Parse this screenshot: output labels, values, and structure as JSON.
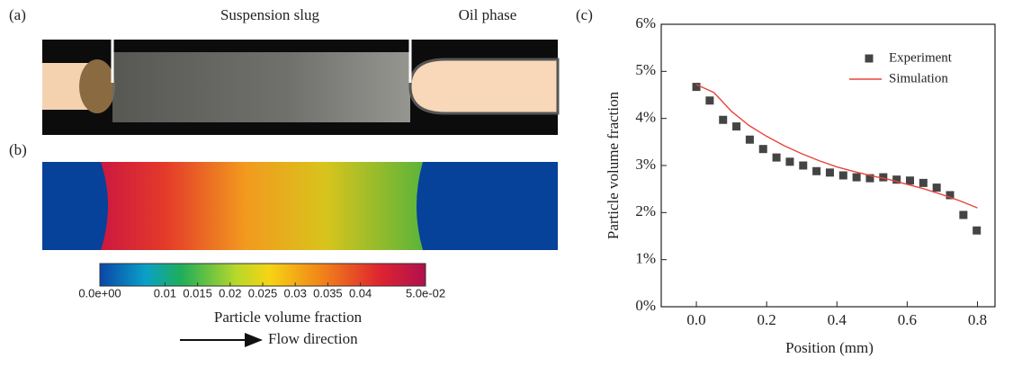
{
  "panels": {
    "a": {
      "label": "(a)",
      "annotations": [
        "Suspension slug",
        "Oil phase"
      ]
    },
    "b": {
      "label": "(b)",
      "colorbar": {
        "lim": [
          0,
          0.05
        ],
        "ticks": [
          {
            "value": 0,
            "label": "0.0e+00"
          },
          0.01,
          0.015,
          0.02,
          0.025,
          0.03,
          0.035,
          0.04,
          {
            "value": 0.05,
            "label": "5.0e-02"
          }
        ],
        "title": "Particle volume fraction"
      },
      "flow_label": "Flow direction"
    },
    "c": {
      "label": "(c)"
    }
  },
  "chart_data": {
    "type": "scatter",
    "xlabel": "Position (mm)",
    "ylabel": "Particle volume fraction",
    "xlim": [
      -0.1,
      0.85
    ],
    "xticks": [
      {
        "value": 0,
        "label": "0.0"
      },
      0.2,
      0.4,
      0.6,
      0.8
    ],
    "ylim": [
      0,
      6
    ],
    "yticks": [
      {
        "value": 0,
        "label": "0%"
      },
      {
        "value": 1,
        "label": "1%"
      },
      {
        "value": 2,
        "label": "2%"
      },
      {
        "value": 3,
        "label": "3%"
      },
      {
        "value": 4,
        "label": "4%"
      },
      {
        "value": 5,
        "label": "5%"
      },
      {
        "value": 6,
        "label": "6%"
      }
    ],
    "legend": "upper right",
    "series": [
      {
        "name": "Experiment",
        "type": "scatter",
        "color": "#444444",
        "x": [
          0,
          0.038,
          0.076,
          0.114,
          0.152,
          0.19,
          0.228,
          0.266,
          0.304,
          0.342,
          0.38,
          0.418,
          0.456,
          0.494,
          0.532,
          0.57,
          0.608,
          0.646,
          0.684,
          0.722,
          0.76,
          0.798
        ],
        "values": [
          4.67,
          4.38,
          3.97,
          3.83,
          3.55,
          3.35,
          3.17,
          3.08,
          3.0,
          2.88,
          2.85,
          2.79,
          2.75,
          2.73,
          2.75,
          2.7,
          2.68,
          2.63,
          2.53,
          2.37,
          1.95,
          1.62
        ]
      },
      {
        "name": "Simulation",
        "type": "line",
        "color": "#e8453c",
        "x": [
          0,
          0.05,
          0.1,
          0.15,
          0.2,
          0.25,
          0.3,
          0.35,
          0.4,
          0.45,
          0.5,
          0.55,
          0.6,
          0.65,
          0.7,
          0.75,
          0.8
        ],
        "values": [
          4.72,
          4.55,
          4.15,
          3.85,
          3.62,
          3.42,
          3.25,
          3.1,
          2.97,
          2.87,
          2.78,
          2.7,
          2.6,
          2.5,
          2.38,
          2.25,
          2.1
        ]
      }
    ]
  }
}
